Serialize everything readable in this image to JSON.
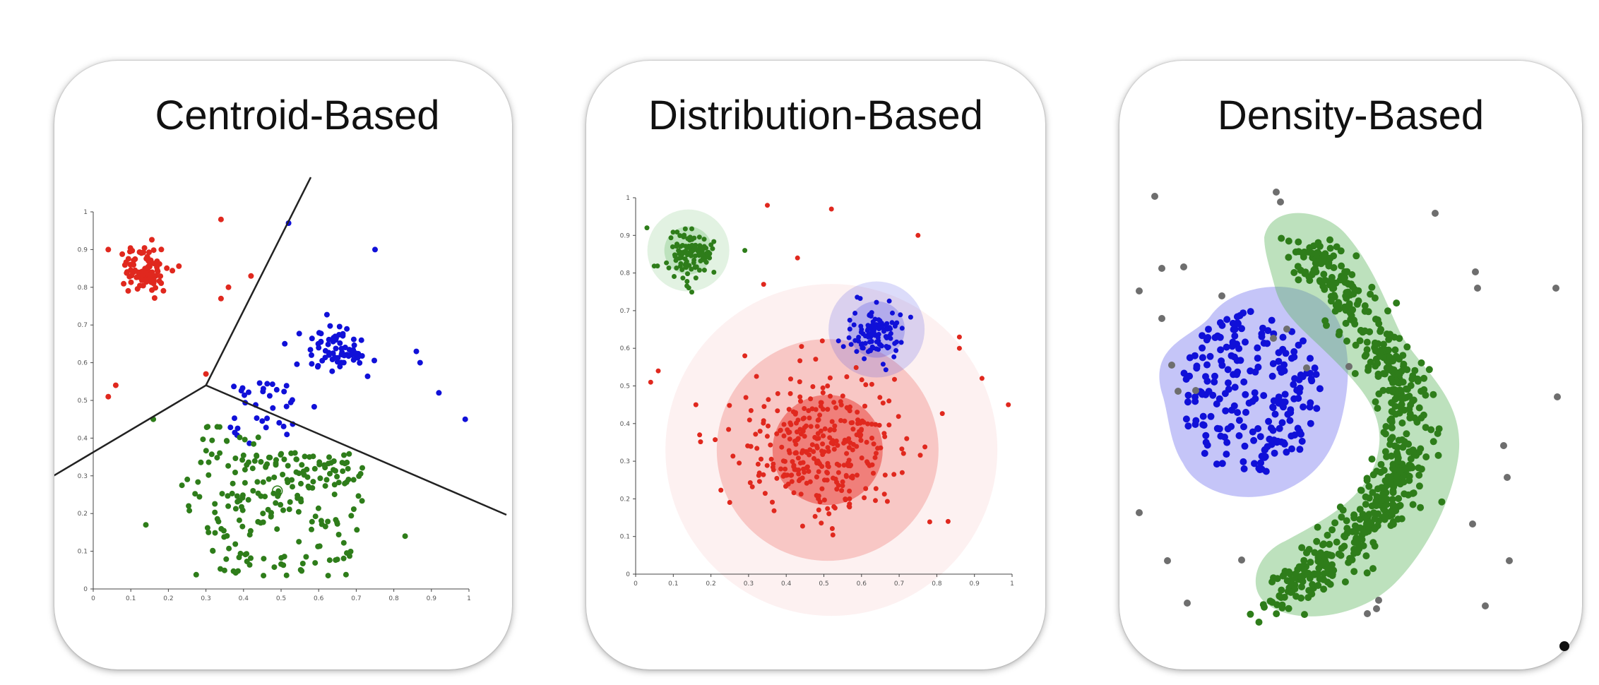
{
  "panels": [
    {
      "id": "centroid",
      "title": "Centroid-Based"
    },
    {
      "id": "distribution",
      "title": "Distribution-Based"
    },
    {
      "id": "density",
      "title": "Density-Based"
    }
  ],
  "colors": {
    "red": "#e0281e",
    "blue": "#1010d8",
    "green": "#2e7d1a",
    "gray": "#6e6e6e",
    "title": "#111111"
  },
  "icons": [
    "corner-dot"
  ],
  "chart_data": [
    {
      "type": "scatter",
      "title": "Centroid-Based",
      "xlim": [
        0,
        1
      ],
      "ylim": [
        0,
        1
      ],
      "xticks": [
        "0",
        "0.1",
        "0.2",
        "0.3",
        "0.4",
        "0.5",
        "0.6",
        "0.7",
        "0.8",
        "0.9",
        "1"
      ],
      "yticks": [
        "0",
        "0.1",
        "0.2",
        "0.3",
        "0.4",
        "0.5",
        "0.6",
        "0.7",
        "0.8",
        "0.9",
        "1"
      ],
      "clusters": [
        {
          "color": "red",
          "center": [
            0.14,
            0.84
          ],
          "spread": [
            0.03,
            0.03
          ],
          "count": 90
        },
        {
          "color": "blue",
          "center": [
            0.65,
            0.64
          ],
          "spread": [
            0.04,
            0.035
          ],
          "count": 70
        },
        {
          "color": "blue",
          "center": [
            0.5,
            0.5
          ],
          "spread": [
            0.1,
            0.05
          ],
          "count": 35
        },
        {
          "color": "green",
          "center": [
            0.48,
            0.25
          ],
          "spread": [
            0.12,
            0.1
          ],
          "count": 230
        }
      ],
      "boundary_points": [
        [
          0.3,
          0.54
        ]
      ]
    },
    {
      "type": "scatter",
      "title": "Distribution-Based",
      "xlim": [
        0,
        1
      ],
      "ylim": [
        0,
        1
      ],
      "xticks": [
        "0",
        "0.1",
        "0.2",
        "0.3",
        "0.4",
        "0.5",
        "0.6",
        "0.7",
        "0.8",
        "0.9",
        "1"
      ],
      "yticks": [
        "0",
        "0.1",
        "0.2",
        "0.3",
        "0.4",
        "0.5",
        "0.6",
        "0.7",
        "0.8",
        "0.9",
        "1"
      ],
      "clusters": [
        {
          "color": "green",
          "center": [
            0.14,
            0.85
          ],
          "spread": [
            0.03,
            0.03
          ],
          "count": 110
        },
        {
          "color": "blue",
          "center": [
            0.64,
            0.64
          ],
          "spread": [
            0.035,
            0.035
          ],
          "count": 110
        },
        {
          "color": "red",
          "center": [
            0.5,
            0.33
          ],
          "spread": [
            0.11,
            0.1
          ],
          "count": 330
        }
      ]
    },
    {
      "type": "scatter",
      "title": "Density-Based",
      "clusters": [
        {
          "color": "blue",
          "shape": "blob",
          "count": 220
        },
        {
          "color": "green",
          "shape": "arc",
          "count": 600
        },
        {
          "color": "gray",
          "shape": "noise",
          "count": 40
        }
      ]
    }
  ]
}
